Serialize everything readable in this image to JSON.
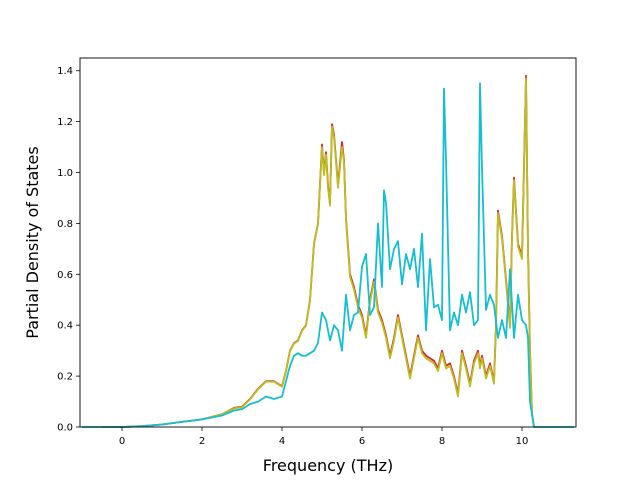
{
  "chart_data": {
    "type": "line",
    "title": "",
    "xlabel": "Frequency (THz)",
    "ylabel": "Partial Density of States",
    "xlim": [
      -1.05,
      11.35
    ],
    "ylim": [
      0,
      1.45
    ],
    "xticks": [
      0,
      2,
      4,
      6,
      8,
      10
    ],
    "yticks": [
      0.0,
      0.2,
      0.4,
      0.6,
      0.8,
      1.0,
      1.2,
      1.4
    ],
    "xtick_labels": [
      "0",
      "2",
      "4",
      "6",
      "8",
      "10"
    ],
    "ytick_labels": [
      "0.0",
      "0.2",
      "0.4",
      "0.6",
      "0.8",
      "1.0",
      "1.2",
      "1.4"
    ],
    "grid": false,
    "legend": "none",
    "series": [
      {
        "color": "#d62728",
        "x": [
          -0.5,
          0.0,
          0.5,
          1.0,
          1.5,
          2.0,
          2.5,
          2.8,
          3.0,
          3.2,
          3.4,
          3.6,
          3.8,
          4.0,
          4.1,
          4.2,
          4.3,
          4.4,
          4.5,
          4.6,
          4.7,
          4.8,
          4.9,
          5.0,
          5.05,
          5.1,
          5.15,
          5.2,
          5.25,
          5.3,
          5.4,
          5.5,
          5.55,
          5.6,
          5.7,
          5.8,
          5.9,
          6.0,
          6.1,
          6.2,
          6.3,
          6.4,
          6.5,
          6.6,
          6.7,
          6.8,
          6.9,
          7.0,
          7.1,
          7.2,
          7.3,
          7.4,
          7.5,
          7.6,
          7.7,
          7.8,
          7.9,
          8.0,
          8.05,
          8.1,
          8.2,
          8.3,
          8.4,
          8.5,
          8.6,
          8.7,
          8.8,
          8.9,
          8.95,
          9.0,
          9.1,
          9.2,
          9.3,
          9.35,
          9.4,
          9.5,
          9.6,
          9.7,
          9.75,
          9.8,
          9.9,
          10.0,
          10.1,
          10.15,
          10.2,
          10.25,
          10.3
        ],
        "y": [
          0.0,
          0.0,
          0.003,
          0.01,
          0.02,
          0.03,
          0.05,
          0.075,
          0.08,
          0.11,
          0.15,
          0.18,
          0.18,
          0.16,
          0.22,
          0.3,
          0.33,
          0.34,
          0.38,
          0.4,
          0.5,
          0.72,
          0.8,
          1.11,
          1.0,
          1.08,
          0.95,
          0.88,
          1.19,
          1.15,
          0.95,
          1.12,
          1.05,
          0.82,
          0.6,
          0.55,
          0.48,
          0.44,
          0.36,
          0.5,
          0.58,
          0.46,
          0.42,
          0.36,
          0.28,
          0.35,
          0.44,
          0.36,
          0.28,
          0.2,
          0.28,
          0.36,
          0.3,
          0.28,
          0.27,
          0.26,
          0.23,
          0.3,
          0.27,
          0.24,
          0.25,
          0.2,
          0.13,
          0.3,
          0.24,
          0.17,
          0.26,
          0.3,
          0.24,
          0.28,
          0.2,
          0.25,
          0.18,
          0.4,
          0.85,
          0.75,
          0.58,
          0.4,
          0.75,
          0.98,
          0.72,
          0.67,
          1.38,
          0.7,
          0.3,
          0.05,
          0.0
        ]
      },
      {
        "color": "#bcbd22",
        "x": [
          -0.5,
          0.0,
          0.5,
          1.0,
          1.5,
          2.0,
          2.5,
          2.8,
          3.0,
          3.2,
          3.4,
          3.6,
          3.8,
          4.0,
          4.1,
          4.2,
          4.3,
          4.4,
          4.5,
          4.6,
          4.7,
          4.8,
          4.9,
          5.0,
          5.05,
          5.1,
          5.15,
          5.2,
          5.25,
          5.3,
          5.4,
          5.5,
          5.55,
          5.6,
          5.7,
          5.8,
          5.9,
          6.0,
          6.1,
          6.2,
          6.3,
          6.4,
          6.5,
          6.6,
          6.7,
          6.8,
          6.9,
          7.0,
          7.1,
          7.2,
          7.3,
          7.4,
          7.5,
          7.6,
          7.7,
          7.8,
          7.9,
          8.0,
          8.05,
          8.1,
          8.2,
          8.3,
          8.4,
          8.5,
          8.6,
          8.7,
          8.8,
          8.9,
          8.95,
          9.0,
          9.1,
          9.2,
          9.3,
          9.35,
          9.4,
          9.5,
          9.6,
          9.7,
          9.75,
          9.8,
          9.9,
          10.0,
          10.1,
          10.15,
          10.2,
          10.25,
          10.3
        ],
        "y": [
          0.0,
          0.0,
          0.003,
          0.01,
          0.02,
          0.03,
          0.05,
          0.073,
          0.078,
          0.108,
          0.148,
          0.178,
          0.178,
          0.158,
          0.218,
          0.298,
          0.328,
          0.338,
          0.378,
          0.398,
          0.498,
          0.718,
          0.798,
          1.1,
          0.99,
          1.07,
          0.94,
          0.87,
          1.18,
          1.14,
          0.94,
          1.1,
          1.04,
          0.81,
          0.59,
          0.54,
          0.47,
          0.43,
          0.35,
          0.49,
          0.57,
          0.45,
          0.41,
          0.35,
          0.27,
          0.34,
          0.43,
          0.35,
          0.27,
          0.19,
          0.27,
          0.35,
          0.29,
          0.27,
          0.26,
          0.25,
          0.22,
          0.29,
          0.26,
          0.23,
          0.24,
          0.19,
          0.12,
          0.29,
          0.23,
          0.16,
          0.25,
          0.29,
          0.23,
          0.27,
          0.19,
          0.24,
          0.17,
          0.39,
          0.84,
          0.74,
          0.57,
          0.39,
          0.74,
          0.97,
          0.71,
          0.66,
          1.37,
          0.69,
          0.29,
          0.05,
          0.0
        ]
      },
      {
        "color": "#17becf",
        "x": [
          -1.0,
          0.0,
          0.5,
          1.0,
          1.5,
          2.0,
          2.5,
          2.8,
          3.0,
          3.2,
          3.4,
          3.6,
          3.8,
          4.0,
          4.1,
          4.2,
          4.3,
          4.4,
          4.5,
          4.6,
          4.7,
          4.8,
          4.9,
          5.0,
          5.1,
          5.2,
          5.3,
          5.4,
          5.5,
          5.6,
          5.7,
          5.8,
          5.9,
          6.0,
          6.1,
          6.2,
          6.3,
          6.4,
          6.5,
          6.55,
          6.6,
          6.7,
          6.8,
          6.9,
          7.0,
          7.1,
          7.2,
          7.3,
          7.4,
          7.5,
          7.6,
          7.7,
          7.8,
          7.9,
          8.0,
          8.05,
          8.1,
          8.2,
          8.3,
          8.4,
          8.5,
          8.6,
          8.7,
          8.8,
          8.9,
          8.95,
          9.0,
          9.1,
          9.2,
          9.3,
          9.4,
          9.5,
          9.6,
          9.7,
          9.8,
          9.9,
          10.0,
          10.1,
          10.15,
          10.2,
          10.25,
          10.3,
          11.3
        ],
        "y": [
          0.0,
          0.0,
          0.003,
          0.01,
          0.02,
          0.03,
          0.045,
          0.065,
          0.07,
          0.09,
          0.1,
          0.12,
          0.11,
          0.12,
          0.18,
          0.24,
          0.28,
          0.29,
          0.28,
          0.28,
          0.29,
          0.3,
          0.33,
          0.45,
          0.42,
          0.34,
          0.4,
          0.38,
          0.3,
          0.52,
          0.38,
          0.44,
          0.45,
          0.63,
          0.68,
          0.44,
          0.47,
          0.8,
          0.55,
          0.93,
          0.88,
          0.62,
          0.7,
          0.73,
          0.56,
          0.68,
          0.62,
          0.7,
          0.55,
          0.76,
          0.38,
          0.66,
          0.47,
          0.48,
          0.42,
          1.33,
          1.05,
          0.38,
          0.45,
          0.4,
          0.52,
          0.45,
          0.53,
          0.4,
          0.42,
          1.35,
          1.02,
          0.46,
          0.52,
          0.48,
          0.35,
          0.42,
          0.35,
          0.62,
          0.35,
          0.52,
          0.42,
          0.4,
          0.35,
          0.1,
          0.05,
          0.0,
          0.0
        ]
      }
    ]
  }
}
